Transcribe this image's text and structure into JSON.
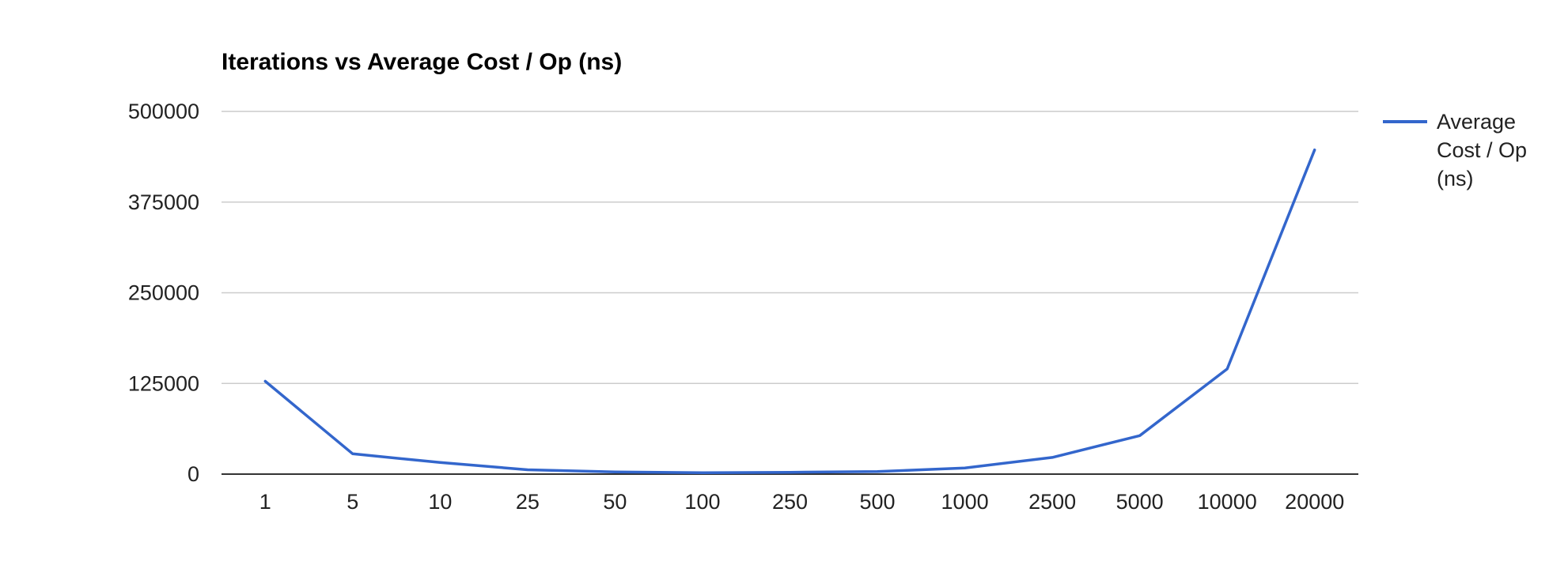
{
  "chart_data": {
    "type": "line",
    "title": "Iterations vs Average Cost / Op (ns)",
    "xlabel": "",
    "ylabel": "",
    "categories": [
      "1",
      "5",
      "10",
      "25",
      "50",
      "100",
      "250",
      "500",
      "1000",
      "2500",
      "5000",
      "10000",
      "20000"
    ],
    "y_ticks": [
      "0",
      "125000",
      "250000",
      "375000",
      "500000"
    ],
    "ylim": [
      0,
      500000
    ],
    "grid": true,
    "legend_position": "right",
    "series": [
      {
        "name_lines": [
          "Average",
          "Cost / Op",
          "(ns)"
        ],
        "color": "#3366cc",
        "values": [
          128000,
          28000,
          16000,
          6000,
          3000,
          2000,
          2500,
          3500,
          8500,
          23000,
          53000,
          145000,
          447000
        ]
      }
    ]
  },
  "colors": {
    "series": "#3366cc",
    "gridline": "#cccccc",
    "baseline": "#333333",
    "text": "#222222"
  }
}
